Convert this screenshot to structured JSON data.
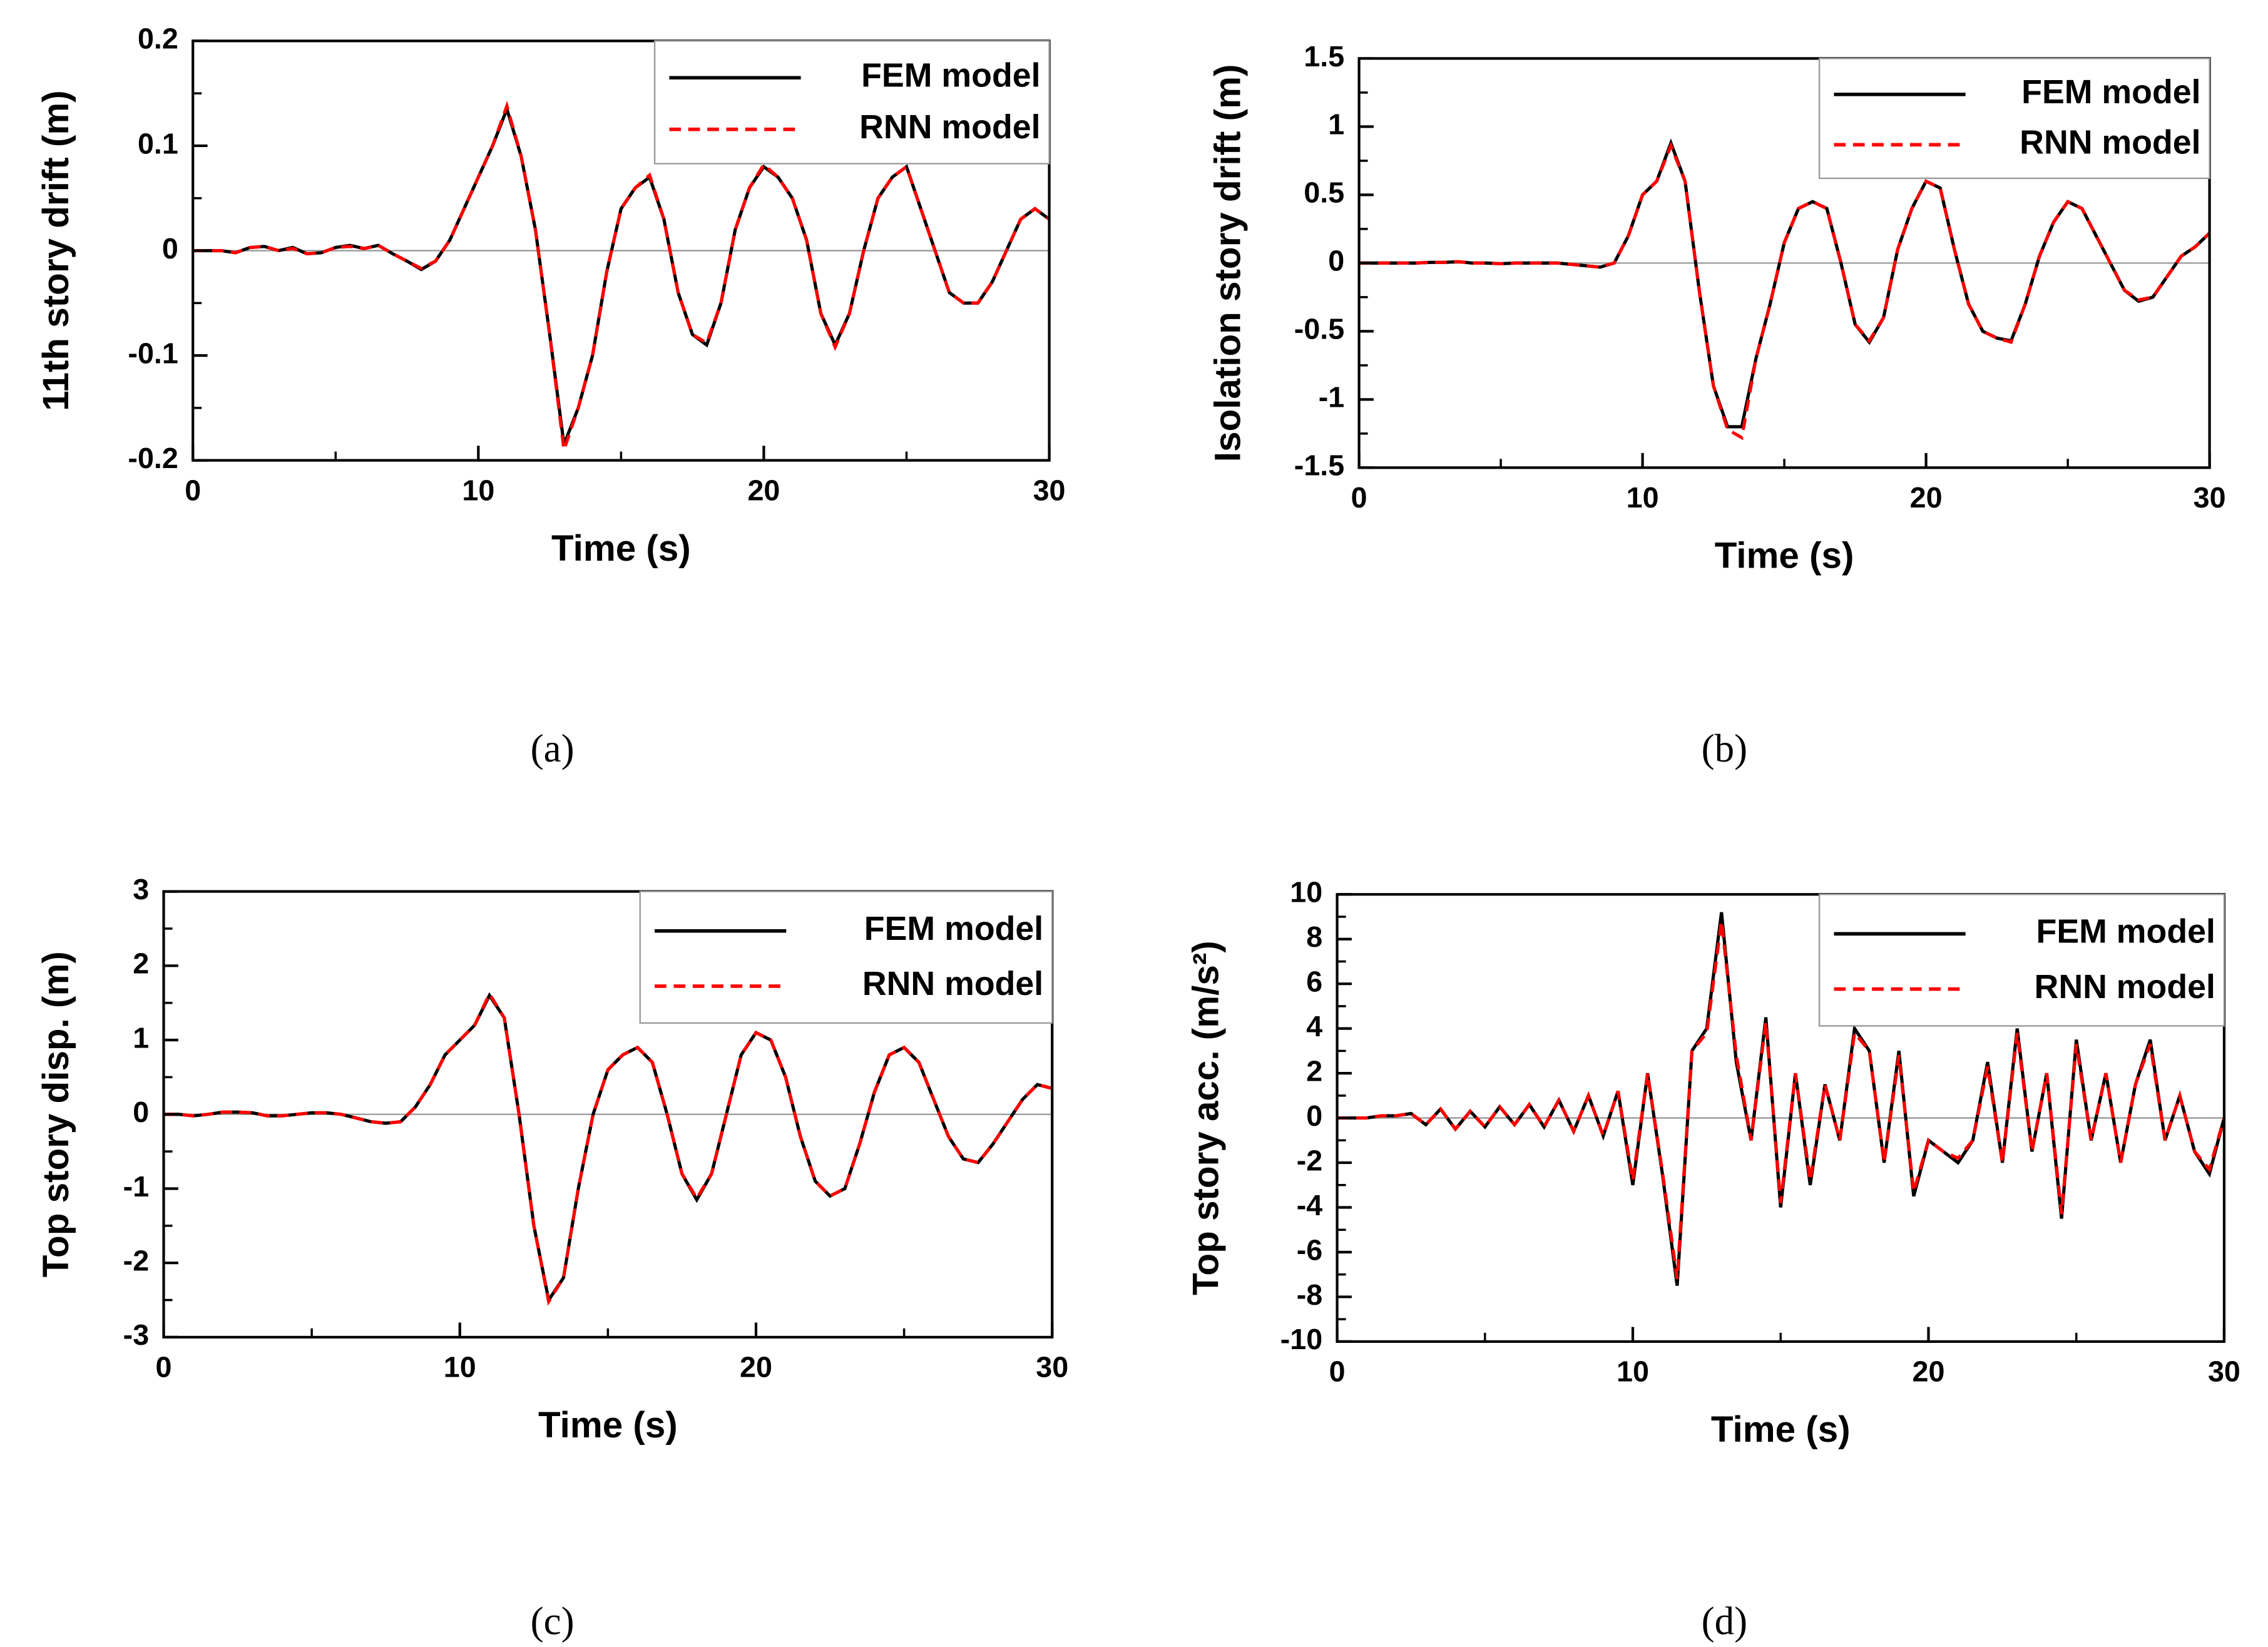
{
  "chart_data": [
    {
      "type": "line",
      "caption": "(a)",
      "xlabel": "Time (s)",
      "ylabel": "11th story drift (m)",
      "xlim": [
        0,
        30
      ],
      "xticks": [
        0,
        10,
        20,
        30
      ],
      "xminor": [
        5,
        15,
        25
      ],
      "ylim": [
        -0.2,
        0.2
      ],
      "yticks": [
        -0.2,
        -0.1,
        0,
        0.1,
        0.2
      ],
      "yminor": [
        -0.15,
        -0.05,
        0.05,
        0.15
      ],
      "x": [
        0,
        0.5,
        1,
        1.5,
        2,
        2.5,
        3,
        3.5,
        4,
        4.5,
        5,
        5.5,
        6,
        6.5,
        7,
        7.5,
        8,
        8.5,
        9,
        9.5,
        10,
        10.5,
        11,
        11.5,
        12,
        12.5,
        13,
        13.5,
        14,
        14.5,
        15,
        15.5,
        16,
        16.5,
        17,
        17.5,
        18,
        18.5,
        19,
        19.5,
        20,
        20.5,
        21,
        21.5,
        22,
        22.5,
        23,
        23.5,
        24,
        24.5,
        25,
        25.5,
        26,
        26.5,
        27,
        27.5,
        28,
        28.5,
        29,
        29.5,
        30
      ],
      "series": [
        {
          "name": "FEM model",
          "color": "#000000",
          "style": "solid",
          "values": [
            0,
            0,
            0,
            -0.002,
            0.003,
            0.004,
            0,
            0.003,
            -0.003,
            -0.002,
            0.003,
            0.005,
            0.002,
            0.005,
            -0.003,
            -0.01,
            -0.018,
            -0.01,
            0.01,
            0.04,
            0.07,
            0.1,
            0.135,
            0.09,
            0.02,
            -0.08,
            -0.185,
            -0.15,
            -0.1,
            -0.02,
            0.04,
            0.06,
            0.07,
            0.03,
            -0.04,
            -0.08,
            -0.09,
            -0.05,
            0.02,
            0.06,
            0.08,
            0.07,
            0.05,
            0.01,
            -0.06,
            -0.09,
            -0.06,
            0,
            0.05,
            0.07,
            0.08,
            0.04,
            0,
            -0.04,
            -0.05,
            -0.05,
            -0.03,
            0,
            0.03,
            0.04,
            0.03
          ]
        },
        {
          "name": "RNN model",
          "color": "#ff0000",
          "style": "dashed",
          "values": [
            0,
            0,
            0,
            -0.002,
            0.003,
            0.004,
            0,
            0.002,
            -0.003,
            -0.002,
            0.003,
            0.004,
            0.002,
            0.005,
            -0.003,
            -0.01,
            -0.017,
            -0.01,
            0.01,
            0.04,
            0.07,
            0.1,
            0.138,
            0.09,
            0.02,
            -0.08,
            -0.19,
            -0.15,
            -0.1,
            -0.02,
            0.04,
            0.06,
            0.072,
            0.03,
            -0.04,
            -0.08,
            -0.088,
            -0.05,
            0.02,
            0.06,
            0.082,
            0.07,
            0.05,
            0.01,
            -0.06,
            -0.092,
            -0.06,
            0,
            0.05,
            0.07,
            0.08,
            0.04,
            0,
            -0.04,
            -0.05,
            -0.05,
            -0.03,
            0,
            0.03,
            0.04,
            0.03
          ]
        }
      ]
    },
    {
      "type": "line",
      "caption": "(b)",
      "xlabel": "Time (s)",
      "ylabel": "Isolation story drift (m)",
      "xlim": [
        0,
        30
      ],
      "xticks": [
        0,
        10,
        20,
        30
      ],
      "xminor": [
        5,
        15,
        25
      ],
      "ylim": [
        -1.5,
        1.5
      ],
      "yticks": [
        -1.5,
        -1,
        -0.5,
        0,
        0.5,
        1,
        1.5
      ],
      "yminor": [
        -1.25,
        -0.75,
        -0.25,
        0.25,
        0.75,
        1.25
      ],
      "x": [
        0,
        0.5,
        1,
        1.5,
        2,
        2.5,
        3,
        3.5,
        4,
        4.5,
        5,
        5.5,
        6,
        6.5,
        7,
        7.5,
        8,
        8.5,
        9,
        9.5,
        10,
        10.5,
        11,
        11.5,
        12,
        12.5,
        13,
        13.5,
        14,
        14.5,
        15,
        15.5,
        16,
        16.5,
        17,
        17.5,
        18,
        18.5,
        19,
        19.5,
        20,
        20.5,
        21,
        21.5,
        22,
        22.5,
        23,
        23.5,
        24,
        24.5,
        25,
        25.5,
        26,
        26.5,
        27,
        27.5,
        28,
        28.5,
        29,
        29.5,
        30
      ],
      "series": [
        {
          "name": "FEM model",
          "color": "#000000",
          "style": "solid",
          "values": [
            0,
            0,
            0,
            0,
            0,
            0.005,
            0.005,
            0.01,
            0,
            0,
            -0.005,
            0,
            0,
            0,
            0,
            -0.01,
            -0.02,
            -0.03,
            0,
            0.2,
            0.5,
            0.6,
            0.88,
            0.6,
            -0.2,
            -0.9,
            -1.2,
            -1.2,
            -0.7,
            -0.3,
            0.15,
            0.4,
            0.45,
            0.4,
            0,
            -0.45,
            -0.58,
            -0.4,
            0.1,
            0.4,
            0.6,
            0.55,
            0.1,
            -0.3,
            -0.5,
            -0.55,
            -0.57,
            -0.3,
            0.05,
            0.3,
            0.45,
            0.4,
            0.2,
            0,
            -0.2,
            -0.28,
            -0.25,
            -0.1,
            0.05,
            0.12,
            0.22
          ]
        },
        {
          "name": "RNN model",
          "color": "#ff0000",
          "style": "dashed",
          "values": [
            0,
            0,
            0,
            0,
            0,
            0.005,
            0.005,
            0.01,
            0,
            0,
            -0.005,
            0,
            0,
            0,
            0,
            -0.01,
            -0.02,
            -0.03,
            0,
            0.2,
            0.5,
            0.6,
            0.86,
            0.6,
            -0.2,
            -0.9,
            -1.22,
            -1.28,
            -0.7,
            -0.3,
            0.15,
            0.4,
            0.45,
            0.4,
            0,
            -0.45,
            -0.57,
            -0.4,
            0.1,
            0.4,
            0.6,
            0.55,
            0.1,
            -0.3,
            -0.5,
            -0.55,
            -0.58,
            -0.3,
            0.05,
            0.3,
            0.45,
            0.4,
            0.2,
            0,
            -0.2,
            -0.27,
            -0.25,
            -0.1,
            0.05,
            0.12,
            0.22
          ]
        }
      ]
    },
    {
      "type": "line",
      "caption": "(c)",
      "xlabel": "Time (s)",
      "ylabel": "Top story disp. (m)",
      "xlim": [
        0,
        30
      ],
      "xticks": [
        0,
        10,
        20,
        30
      ],
      "xminor": [
        5,
        15,
        25
      ],
      "ylim": [
        -3,
        3
      ],
      "yticks": [
        -3,
        -2,
        -1,
        0,
        1,
        2,
        3
      ],
      "yminor": [
        -2.5,
        -1.5,
        -0.5,
        0.5,
        1.5,
        2.5
      ],
      "x": [
        0,
        0.5,
        1,
        1.5,
        2,
        2.5,
        3,
        3.5,
        4,
        4.5,
        5,
        5.5,
        6,
        6.5,
        7,
        7.5,
        8,
        8.5,
        9,
        9.5,
        10,
        10.5,
        11,
        11.5,
        12,
        12.5,
        13,
        13.5,
        14,
        14.5,
        15,
        15.5,
        16,
        16.5,
        17,
        17.5,
        18,
        18.5,
        19,
        19.5,
        20,
        20.5,
        21,
        21.5,
        22,
        22.5,
        23,
        23.5,
        24,
        24.5,
        25,
        25.5,
        26,
        26.5,
        27,
        27.5,
        28,
        28.5,
        29,
        29.5,
        30
      ],
      "series": [
        {
          "name": "FEM model",
          "color": "#000000",
          "style": "solid",
          "values": [
            0,
            0,
            -0.02,
            0,
            0.03,
            0.03,
            0.02,
            -0.02,
            -0.02,
            0,
            0.02,
            0.02,
            0,
            -0.05,
            -0.1,
            -0.12,
            -0.1,
            0.1,
            0.4,
            0.8,
            1,
            1.2,
            1.6,
            1.3,
            0,
            -1.5,
            -2.5,
            -2.2,
            -1,
            0,
            0.6,
            0.8,
            0.9,
            0.7,
            0,
            -0.8,
            -1.15,
            -0.8,
            0,
            0.8,
            1.1,
            1,
            0.5,
            -0.3,
            -0.9,
            -1.1,
            -1,
            -0.4,
            0.3,
            0.8,
            0.9,
            0.7,
            0.2,
            -0.3,
            -0.6,
            -0.65,
            -0.4,
            -0.1,
            0.2,
            0.4,
            0.35
          ]
        },
        {
          "name": "RNN model",
          "color": "#ff0000",
          "style": "dashed",
          "values": [
            0,
            0,
            -0.02,
            0,
            0.03,
            0.03,
            0.02,
            -0.02,
            -0.02,
            0,
            0.02,
            0.02,
            0,
            -0.05,
            -0.1,
            -0.12,
            -0.1,
            0.1,
            0.4,
            0.8,
            1,
            1.2,
            1.62,
            1.3,
            0,
            -1.5,
            -2.52,
            -2.2,
            -1,
            0,
            0.6,
            0.8,
            0.9,
            0.7,
            0,
            -0.8,
            -1.13,
            -0.8,
            0,
            0.8,
            1.1,
            1,
            0.5,
            -0.3,
            -0.9,
            -1.1,
            -1,
            -0.4,
            0.3,
            0.8,
            0.9,
            0.7,
            0.2,
            -0.3,
            -0.6,
            -0.65,
            -0.4,
            -0.1,
            0.2,
            0.4,
            0.35
          ]
        }
      ]
    },
    {
      "type": "line",
      "caption": "(d)",
      "xlabel": "Time (s)",
      "ylabel": "Top story acc. (m/s²)",
      "xlim": [
        0,
        30
      ],
      "xticks": [
        0,
        10,
        20,
        30
      ],
      "xminor": [
        5,
        15,
        25
      ],
      "ylim": [
        -10,
        10
      ],
      "yticks": [
        -10,
        -8,
        -6,
        -4,
        -2,
        0,
        2,
        4,
        6,
        8,
        10
      ],
      "yminor": [
        -9,
        -7,
        -5,
        -3,
        -1,
        1,
        3,
        5,
        7,
        9
      ],
      "x": [
        0,
        0.5,
        1,
        1.5,
        2,
        2.5,
        3,
        3.5,
        4,
        4.5,
        5,
        5.5,
        6,
        6.5,
        7,
        7.5,
        8,
        8.5,
        9,
        9.5,
        10,
        10.5,
        11,
        11.5,
        12,
        12.5,
        13,
        13.5,
        14,
        14.5,
        15,
        15.5,
        16,
        16.5,
        17,
        17.5,
        18,
        18.5,
        19,
        19.5,
        20,
        20.5,
        21,
        21.5,
        22,
        22.5,
        23,
        23.5,
        24,
        24.5,
        25,
        25.5,
        26,
        26.5,
        27,
        27.5,
        28,
        28.5,
        29,
        29.5,
        30
      ],
      "series": [
        {
          "name": "FEM model",
          "color": "#000000",
          "style": "solid",
          "values": [
            0,
            0,
            0,
            0.1,
            0.1,
            0.2,
            -0.3,
            0.4,
            -0.5,
            0.3,
            -0.4,
            0.5,
            -0.3,
            0.6,
            -0.4,
            0.8,
            -0.6,
            1,
            -0.8,
            1.2,
            -3,
            2,
            -2.5,
            -7.5,
            3,
            4,
            9.2,
            2.5,
            -1,
            4.5,
            -4,
            2,
            -3,
            1.5,
            -1,
            4,
            3,
            -2,
            3,
            -3.5,
            -1,
            -1.5,
            -2,
            -1,
            2.5,
            -2,
            4,
            -1.5,
            2,
            -4.5,
            3.5,
            -1,
            2,
            -2,
            1.5,
            3.5,
            -1,
            1,
            -1.5,
            -2.5,
            0
          ]
        },
        {
          "name": "RNN model",
          "color": "#ff0000",
          "style": "dashed",
          "values": [
            0,
            0,
            0,
            0.1,
            0.1,
            0.2,
            -0.3,
            0.4,
            -0.5,
            0.3,
            -0.4,
            0.5,
            -0.3,
            0.6,
            -0.4,
            0.8,
            -0.6,
            1,
            -0.8,
            1.2,
            -2.8,
            2,
            -2.4,
            -7.2,
            3,
            3.8,
            8.8,
            2.8,
            -1,
            4.3,
            -3.8,
            2,
            -2.8,
            1.5,
            -1,
            3.8,
            3,
            -2,
            2.8,
            -3.3,
            -1,
            -1.5,
            -1.8,
            -1,
            2.3,
            -2,
            3.8,
            -1.5,
            2,
            -4.3,
            3.3,
            -1,
            2,
            -2,
            1.5,
            3.3,
            -1,
            1,
            -1.5,
            -2.3,
            0
          ]
        }
      ]
    }
  ]
}
